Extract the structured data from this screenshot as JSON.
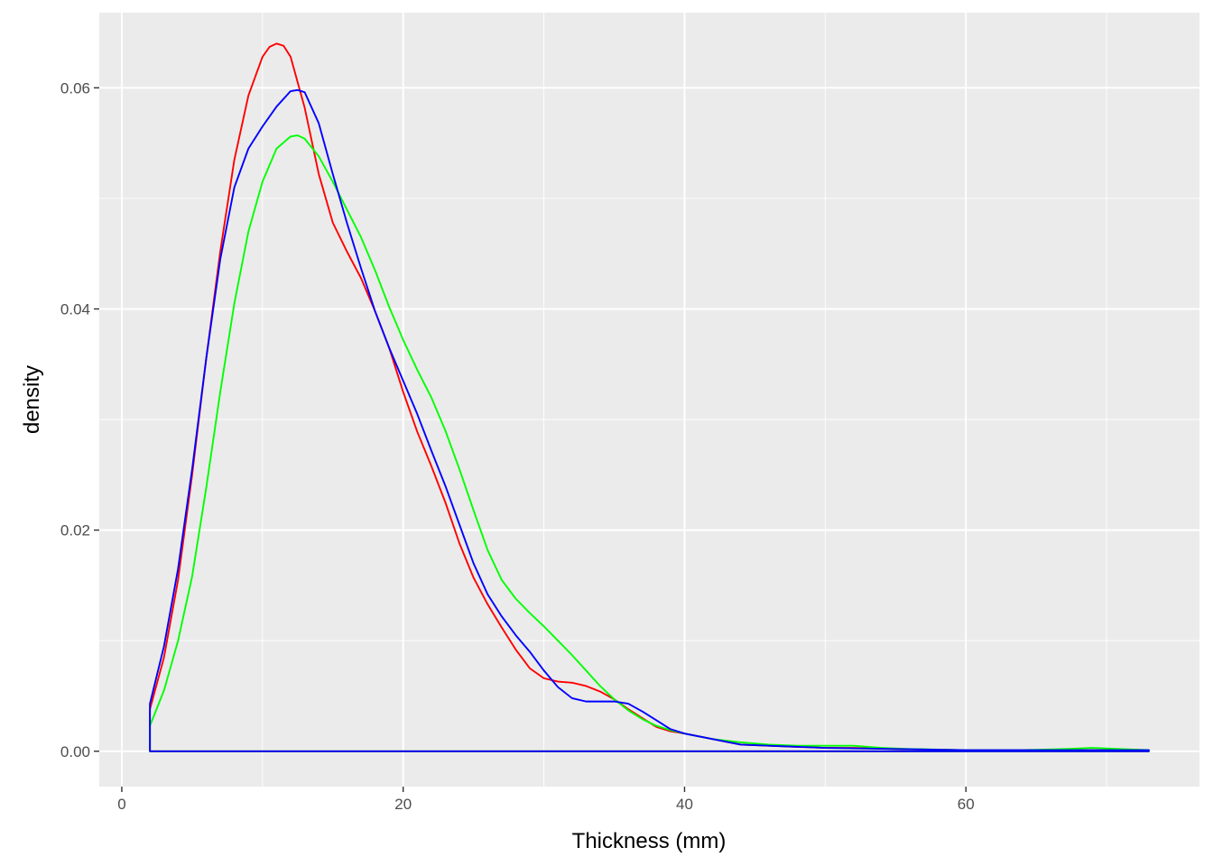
{
  "chart_data": {
    "type": "line",
    "xlabel": "Thickness (mm)",
    "ylabel": "density",
    "xlim": [
      -1.6,
      76.6
    ],
    "ylim": [
      -0.0032,
      0.0668
    ],
    "x_ticks": [
      0,
      20,
      40,
      60
    ],
    "x_tick_labels": [
      "0",
      "20",
      "40",
      "60"
    ],
    "y_ticks": [
      0.0,
      0.02,
      0.04,
      0.06
    ],
    "y_tick_labels": [
      "0.00",
      "0.02",
      "0.04",
      "0.06"
    ],
    "grid": true,
    "legend": "none",
    "colors": {
      "panel": "#ebebeb",
      "grid": "#ffffff",
      "tick": "#333333"
    },
    "series": [
      {
        "color": "#ff0000",
        "x": [
          2,
          3,
          4,
          5,
          6,
          7,
          8,
          9,
          10,
          10.5,
          11,
          11.5,
          12,
          13,
          14,
          15,
          16,
          17,
          18,
          19,
          20,
          21,
          22,
          23,
          24,
          25,
          26,
          27,
          28,
          29,
          30,
          31,
          32,
          33,
          34,
          35,
          36,
          37,
          38,
          39,
          40,
          42,
          44,
          46,
          48,
          50,
          52,
          55,
          60,
          65,
          70,
          73
        ],
        "y": [
          0.0038,
          0.0085,
          0.0155,
          0.025,
          0.0355,
          0.0452,
          0.0535,
          0.0593,
          0.0628,
          0.0637,
          0.064,
          0.0638,
          0.0628,
          0.0582,
          0.0522,
          0.0478,
          0.0452,
          0.0428,
          0.0398,
          0.0365,
          0.0325,
          0.0289,
          0.0258,
          0.0225,
          0.0188,
          0.0157,
          0.0133,
          0.0112,
          0.0092,
          0.0075,
          0.0066,
          0.0063,
          0.0062,
          0.0059,
          0.0054,
          0.0047,
          0.0038,
          0.003,
          0.0022,
          0.0018,
          0.0016,
          0.0011,
          0.0006,
          0.0005,
          0.0004,
          0.0003,
          0.0003,
          0.0002,
          0.0001,
          0.0001,
          0.0001,
          0.0001
        ]
      },
      {
        "color": "#00ff00",
        "x": [
          2,
          3,
          4,
          5,
          6,
          7,
          8,
          9,
          10,
          11,
          12,
          12.5,
          13,
          14,
          15,
          16,
          17,
          18,
          19,
          20,
          21,
          22,
          23,
          24,
          25,
          26,
          27,
          28,
          29,
          30,
          31,
          32,
          33,
          34,
          35,
          36,
          37,
          38,
          39,
          40,
          42,
          44,
          46,
          48,
          50,
          52,
          54,
          56,
          60,
          64,
          67,
          69,
          71,
          73
        ],
        "y": [
          0.0023,
          0.0055,
          0.01,
          0.0158,
          0.0238,
          0.0325,
          0.0405,
          0.047,
          0.0515,
          0.0545,
          0.0556,
          0.0557,
          0.0554,
          0.0538,
          0.0515,
          0.049,
          0.0465,
          0.0435,
          0.0402,
          0.0372,
          0.0345,
          0.032,
          0.029,
          0.0255,
          0.0218,
          0.0182,
          0.0155,
          0.0138,
          0.0125,
          0.0113,
          0.01,
          0.0087,
          0.0073,
          0.0059,
          0.0047,
          0.0037,
          0.0029,
          0.0023,
          0.0019,
          0.0016,
          0.0011,
          0.0008,
          0.0006,
          0.0005,
          0.0005,
          0.0005,
          0.0003,
          0.0002,
          0.0001,
          0.0001,
          0.0002,
          0.0003,
          0.0002,
          0.0001
        ]
      },
      {
        "color": "#0000ff",
        "x": [
          2,
          3,
          4,
          5,
          6,
          7,
          8,
          9,
          10,
          11,
          12,
          12.5,
          13,
          14,
          15,
          16,
          17,
          18,
          19,
          20,
          21,
          22,
          23,
          24,
          25,
          26,
          27,
          28,
          29,
          30,
          31,
          32,
          33,
          34,
          35,
          36,
          37,
          38,
          39,
          40,
          42,
          44,
          46,
          48,
          50,
          55,
          60,
          65,
          69,
          71,
          73
        ],
        "y": [
          0.0043,
          0.0095,
          0.0165,
          0.0255,
          0.0355,
          0.0445,
          0.051,
          0.0545,
          0.0565,
          0.0583,
          0.0597,
          0.0598,
          0.0596,
          0.0568,
          0.0522,
          0.0478,
          0.0437,
          0.0398,
          0.0365,
          0.0335,
          0.0305,
          0.0272,
          0.024,
          0.0205,
          0.017,
          0.0142,
          0.0122,
          0.0105,
          0.009,
          0.0073,
          0.0058,
          0.0048,
          0.0045,
          0.0045,
          0.0045,
          0.0043,
          0.0036,
          0.0028,
          0.002,
          0.0016,
          0.0011,
          0.0006,
          0.0005,
          0.0004,
          0.0003,
          0.0002,
          0.0001,
          0.0001,
          0.0001,
          0.0001,
          0.0001
        ]
      }
    ]
  }
}
